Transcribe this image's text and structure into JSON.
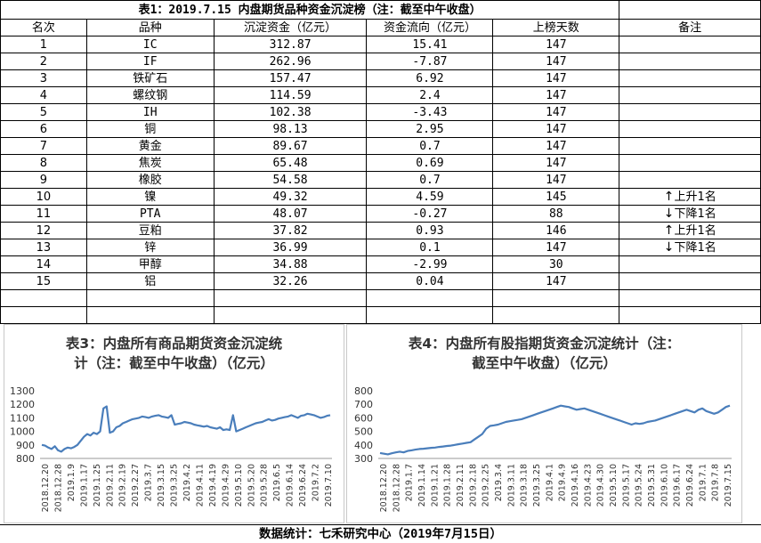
{
  "table": {
    "title": "表1：2019.7.15 内盘期货品种资金沉淀榜（注：截至中午收盘）",
    "headers": [
      "名次",
      "品种",
      "沉淀资金（亿元）",
      "资金流向（亿元）",
      "上榜天数",
      "备注"
    ],
    "rows": [
      {
        "rank": "1",
        "name": "IC",
        "fund": "312.87",
        "flow": "15.41",
        "days": "147",
        "note": "",
        "dir": ""
      },
      {
        "rank": "2",
        "name": "IF",
        "fund": "262.96",
        "flow": "-7.87",
        "days": "147",
        "note": "",
        "dir": ""
      },
      {
        "rank": "3",
        "name": "铁矿石",
        "fund": "157.47",
        "flow": "6.92",
        "days": "147",
        "note": "",
        "dir": ""
      },
      {
        "rank": "4",
        "name": "螺纹钢",
        "fund": "114.59",
        "flow": "2.4",
        "days": "147",
        "note": "",
        "dir": ""
      },
      {
        "rank": "5",
        "name": "IH",
        "fund": "102.38",
        "flow": "-3.43",
        "days": "147",
        "note": "",
        "dir": ""
      },
      {
        "rank": "6",
        "name": "铜",
        "fund": "98.13",
        "flow": "2.95",
        "days": "147",
        "note": "",
        "dir": ""
      },
      {
        "rank": "7",
        "name": "黄金",
        "fund": "89.67",
        "flow": "0.7",
        "days": "147",
        "note": "",
        "dir": ""
      },
      {
        "rank": "8",
        "name": "焦炭",
        "fund": "65.48",
        "flow": "0.69",
        "days": "147",
        "note": "",
        "dir": ""
      },
      {
        "rank": "9",
        "name": "橡胶",
        "fund": "54.58",
        "flow": "0.7",
        "days": "147",
        "note": "",
        "dir": ""
      },
      {
        "rank": "10",
        "name": "镍",
        "fund": "49.32",
        "flow": "4.59",
        "days": "145",
        "note": "上升1名",
        "dir": "up"
      },
      {
        "rank": "11",
        "name": "PTA",
        "fund": "48.07",
        "flow": "-0.27",
        "days": "88",
        "note": "下降1名",
        "dir": "down"
      },
      {
        "rank": "12",
        "name": "豆粕",
        "fund": "37.82",
        "flow": "0.93",
        "days": "146",
        "note": "上升1名",
        "dir": "up"
      },
      {
        "rank": "13",
        "name": "锌",
        "fund": "36.99",
        "flow": "0.1",
        "days": "147",
        "note": "下降1名",
        "dir": "down"
      },
      {
        "rank": "14",
        "name": "甲醇",
        "fund": "34.88",
        "flow": "-2.99",
        "days": "30",
        "note": "",
        "dir": ""
      },
      {
        "rank": "15",
        "name": "铝",
        "fund": "32.26",
        "flow": "0.04",
        "days": "147",
        "note": "",
        "dir": ""
      }
    ],
    "arrow_up": "↑",
    "arrow_down": "↓"
  },
  "chart_data": [
    {
      "type": "line",
      "title_line1": "表3：内盘所有商品期货资金沉淀统",
      "title_line2": "计（注：截至中午收盘）（亿元）",
      "ylim": [
        800,
        1300
      ],
      "yticks": [
        800,
        900,
        1000,
        1100,
        1200,
        1300
      ],
      "xticks": [
        "2018.12.20",
        "2018.12.28",
        "2019.1.9",
        "2019.1.17",
        "2019.1.25",
        "2019.2.11",
        "2019.2.19",
        "2019.2.27",
        "2019.3.7",
        "2019.3.15",
        "2019.3.25",
        "2019.4.2",
        "2019.4.11",
        "2019.4.19",
        "2019.4.29",
        "2019.5.10",
        "2019.5.20",
        "2019.5.28",
        "2019.6.5",
        "2019.6.14",
        "2019.6.24",
        "2019.7.2",
        "2019.7.10"
      ],
      "color": "#4a7ebb",
      "values": [
        900,
        895,
        880,
        870,
        890,
        860,
        850,
        870,
        880,
        875,
        885,
        900,
        930,
        960,
        980,
        970,
        990,
        980,
        1000,
        1170,
        1185,
        990,
        1000,
        1030,
        1040,
        1060,
        1070,
        1080,
        1090,
        1095,
        1100,
        1110,
        1105,
        1100,
        1110,
        1115,
        1120,
        1110,
        1105,
        1100,
        1120,
        1050,
        1055,
        1060,
        1070,
        1065,
        1060,
        1050,
        1045,
        1040,
        1035,
        1040,
        1030,
        1025,
        1020,
        1030,
        1010,
        1015,
        1010,
        1120,
        1000,
        1010,
        1020,
        1030,
        1040,
        1050,
        1060,
        1065,
        1070,
        1080,
        1090,
        1080,
        1085,
        1095,
        1100,
        1105,
        1110,
        1120,
        1110,
        1100,
        1115,
        1120,
        1130,
        1125,
        1120,
        1110,
        1100,
        1105,
        1115,
        1120
      ]
    },
    {
      "type": "line",
      "title_line1": "表4：内盘所有股指期货资金沉淀统计（注：",
      "title_line2": "截至中午收盘）（亿元）",
      "ylim": [
        300,
        800
      ],
      "yticks": [
        300,
        400,
        500,
        600,
        700,
        800
      ],
      "xticks": [
        "2018.12.20",
        "2018.12.28",
        "2019.1.7",
        "2019.1.14",
        "2019.1.21",
        "2019.1.28",
        "2019.2.11",
        "2019.2.18",
        "2019.2.25",
        "2019.3.4",
        "2019.3.11",
        "2019.3.18",
        "2019.3.25",
        "2019.4.1",
        "2019.4.9",
        "2019.4.16",
        "2019.4.23",
        "2019.4.30",
        "2019.5.10",
        "2019.5.17",
        "2019.5.24",
        "2019.5.31",
        "2019.6.10",
        "2019.6.17",
        "2019.6.24",
        "2019.7.1",
        "2019.7.8",
        "2019.7.15"
      ],
      "color": "#4a7ebb",
      "values": [
        340,
        335,
        330,
        338,
        345,
        350,
        345,
        355,
        360,
        365,
        370,
        372,
        375,
        378,
        380,
        385,
        388,
        392,
        395,
        400,
        405,
        410,
        415,
        420,
        440,
        460,
        480,
        520,
        540,
        545,
        550,
        560,
        570,
        575,
        580,
        585,
        590,
        600,
        610,
        620,
        630,
        640,
        650,
        660,
        670,
        680,
        690,
        685,
        680,
        670,
        660,
        665,
        670,
        660,
        650,
        640,
        630,
        620,
        610,
        600,
        590,
        580,
        570,
        560,
        550,
        560,
        555,
        560,
        570,
        575,
        580,
        590,
        600,
        610,
        620,
        630,
        640,
        650,
        660,
        650,
        640,
        660,
        670,
        650,
        640,
        630,
        640,
        660,
        680,
        690
      ]
    }
  ],
  "footer": "数据统计：七禾研究中心（2019年7月15日）"
}
